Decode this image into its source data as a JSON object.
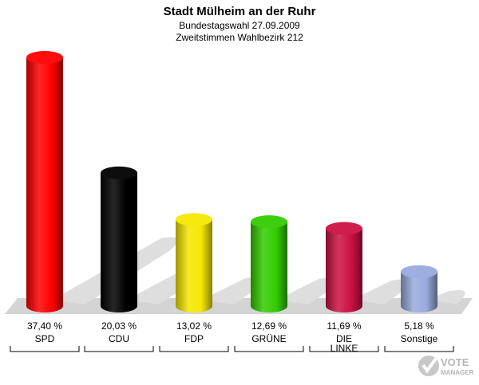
{
  "header": {
    "title": "Stadt Mülheim an der Ruhr",
    "subtitle1": "Bundestagswahl 27.09.2009",
    "subtitle2": "Zweitstimmen Wahlbezirk 212"
  },
  "logo": {
    "line1": "VOTE",
    "line2": "MANAGER"
  },
  "chart_data": {
    "type": "bar",
    "title": "Stadt Mülheim an der Ruhr",
    "categories": [
      "SPD",
      "CDU",
      "FDP",
      "GRÜNE",
      "DIE LINKE",
      "Sonstige"
    ],
    "category_lines": [
      [
        "SPD"
      ],
      [
        "CDU"
      ],
      [
        "FDP"
      ],
      [
        "GRÜNE"
      ],
      [
        "DIE",
        "LINKE"
      ],
      [
        "Sonstige"
      ]
    ],
    "values": [
      37.4,
      20.03,
      13.02,
      12.69,
      11.69,
      5.18
    ],
    "value_labels": [
      "37,40 %",
      "20,03 %",
      "13,02 %",
      "12,69 %",
      "11,69 %",
      "5,18 %"
    ],
    "colors": [
      "#ff0000",
      "#000000",
      "#f5e800",
      "#33cc00",
      "#cc1144",
      "#99aadd"
    ],
    "ylim": [
      0,
      37.4
    ],
    "grid": false,
    "legend": "none"
  }
}
